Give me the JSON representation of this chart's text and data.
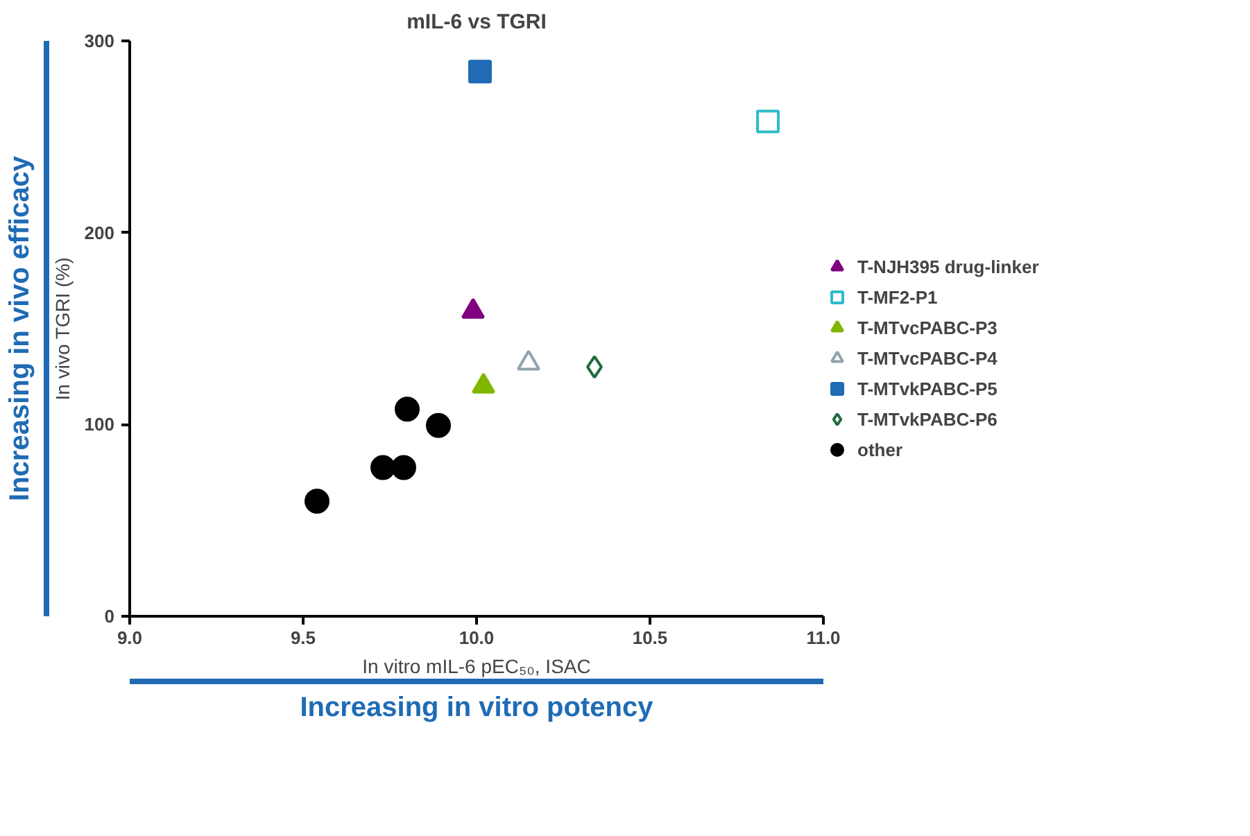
{
  "chart_data": {
    "type": "scatter",
    "title": "mIL-6 vs TGRI",
    "xlabel": "In vitro mIL-6 pEC₅₀, ISAC",
    "ylabel": "In vivo TGRI (%)",
    "xlim": [
      9.0,
      11.0
    ],
    "xticks": [
      {
        "value": 9.0,
        "label": "9.0"
      },
      9.5,
      {
        "value": 10.0,
        "label": "10.0"
      },
      10.5,
      {
        "value": 11.0,
        "label": "11.0"
      }
    ],
    "ylim": [
      0,
      300
    ],
    "yticks": [
      0,
      100,
      200,
      300
    ],
    "grid": false,
    "legend": "right",
    "annotations": [
      "Increasing in vivo efficacy",
      "Increasing in vitro potency"
    ],
    "series": [
      {
        "name": "T-NJH395 drug-linker",
        "color": "#800080",
        "marker": "triangle",
        "x": [
          9.99
        ],
        "values": [
          159
        ]
      },
      {
        "name": "T-MF2-P1",
        "color": "#2ebccc",
        "marker": "square_open",
        "x": [
          10.84
        ],
        "values": [
          258
        ]
      },
      {
        "name": "T-MTvcPABC-P3",
        "color": "#80b800",
        "marker": "triangle",
        "x": [
          10.02
        ],
        "values": [
          120
        ]
      },
      {
        "name": "T-MTvcPABC-P4",
        "color": "#90a4ac",
        "marker": "triangle_open",
        "x": [
          10.15
        ],
        "values": [
          132
        ]
      },
      {
        "name": "T-MTvkPABC-P5",
        "color": "#1f6bb5",
        "marker": "square",
        "x": [
          10.01
        ],
        "values": [
          284
        ]
      },
      {
        "name": "T-MTvkPABC-P6",
        "color": "#1e6b40",
        "marker": "diamond_open",
        "x": [
          10.34
        ],
        "values": [
          130
        ]
      },
      {
        "name": "other",
        "color": "#000000",
        "marker": "circle",
        "x": [
          9.54,
          9.73,
          9.79,
          9.8,
          9.89
        ],
        "values": [
          60,
          77.5,
          77.5,
          108,
          99.5
        ]
      }
    ]
  }
}
